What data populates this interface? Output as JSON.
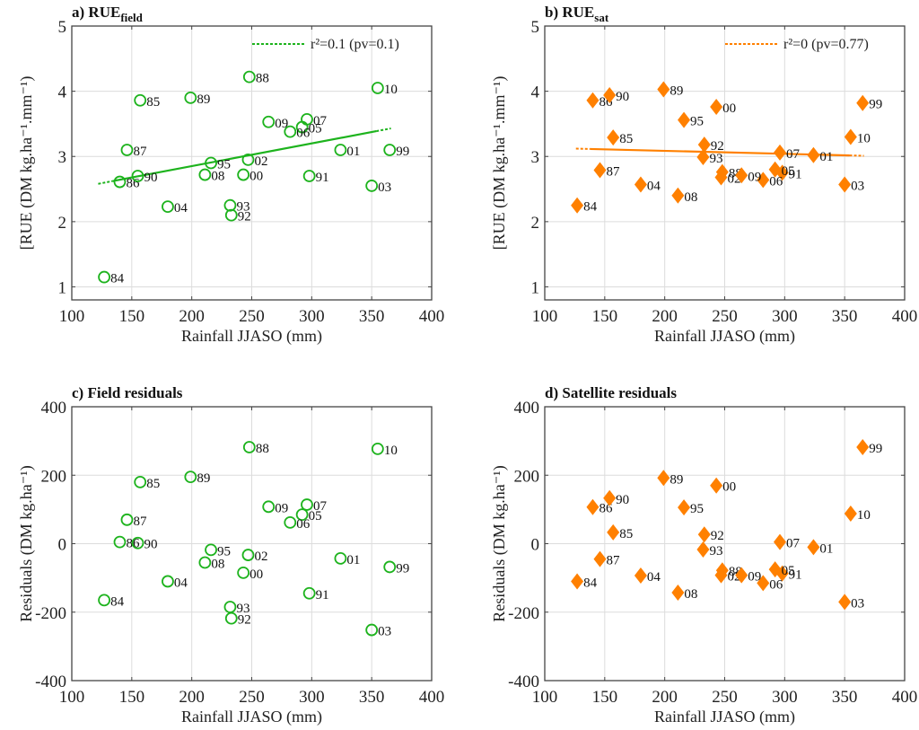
{
  "figure": {
    "colors": {
      "field": "#1db31d",
      "sat": "#ff8000",
      "grid": "#dcdcdc",
      "axis": "#444444"
    }
  },
  "chart_data": [
    {
      "id": "a",
      "type": "scatter",
      "title": "a) RUE",
      "title_sub": "field",
      "xlabel": "Rainfall JJASO (mm)",
      "ylabel": "[RUE (DM kg.ha⁻¹.mm⁻¹)",
      "xlim": [
        100,
        400
      ],
      "ylim": [
        0.8,
        5
      ],
      "xticks": [
        100,
        150,
        200,
        250,
        300,
        350,
        400
      ],
      "yticks": [
        1,
        2,
        3,
        4,
        5
      ],
      "grid": true,
      "marker": "circle",
      "legend": {
        "label": "r²=0.1 (pv=0.1)",
        "position": "top-right"
      },
      "fit": {
        "x": [
          122,
          366
        ],
        "y": [
          2.58,
          3.43
        ]
      },
      "points": [
        {
          "label": "84",
          "x": 127,
          "y": 1.15
        },
        {
          "label": "85",
          "x": 157,
          "y": 3.86
        },
        {
          "label": "86",
          "x": 140,
          "y": 2.61
        },
        {
          "label": "87",
          "x": 146,
          "y": 3.1
        },
        {
          "label": "88",
          "x": 248,
          "y": 4.22
        },
        {
          "label": "89",
          "x": 199,
          "y": 3.9
        },
        {
          "label": "90",
          "x": 155,
          "y": 2.7
        },
        {
          "label": "91",
          "x": 298,
          "y": 2.7
        },
        {
          "label": "92",
          "x": 233,
          "y": 2.1
        },
        {
          "label": "93",
          "x": 232,
          "y": 2.25
        },
        {
          "label": "95",
          "x": 216,
          "y": 2.9
        },
        {
          "label": "99",
          "x": 365,
          "y": 3.1
        },
        {
          "label": "00",
          "x": 243,
          "y": 2.72
        },
        {
          "label": "01",
          "x": 324,
          "y": 3.1
        },
        {
          "label": "02",
          "x": 247,
          "y": 2.95
        },
        {
          "label": "03",
          "x": 350,
          "y": 2.55
        },
        {
          "label": "04",
          "x": 180,
          "y": 2.23
        },
        {
          "label": "05",
          "x": 292,
          "y": 3.45
        },
        {
          "label": "06",
          "x": 282,
          "y": 3.38
        },
        {
          "label": "07",
          "x": 296,
          "y": 3.57
        },
        {
          "label": "08",
          "x": 211,
          "y": 2.72
        },
        {
          "label": "09",
          "x": 264,
          "y": 3.53
        },
        {
          "label": "10",
          "x": 355,
          "y": 4.05
        }
      ]
    },
    {
      "id": "b",
      "type": "scatter",
      "title": "b) RUE",
      "title_sub": "sat",
      "xlabel": "Rainfall JJASO (mm)",
      "ylabel": "[RUE (DM kg.ha⁻¹.mm⁻¹)",
      "xlim": [
        100,
        400
      ],
      "ylim": [
        0.8,
        5
      ],
      "xticks": [
        100,
        150,
        200,
        250,
        300,
        350,
        400
      ],
      "yticks": [
        1,
        2,
        3,
        4,
        5
      ],
      "grid": true,
      "marker": "diamond",
      "legend": {
        "label": "r²=0 (pv=0.77)",
        "position": "top-right"
      },
      "fit": {
        "x": [
          126,
          366
        ],
        "y": [
          3.12,
          3.01
        ]
      },
      "points": [
        {
          "label": "84",
          "x": 127,
          "y": 2.25
        },
        {
          "label": "85",
          "x": 157,
          "y": 3.29
        },
        {
          "label": "86",
          "x": 140,
          "y": 3.86
        },
        {
          "label": "87",
          "x": 146,
          "y": 2.79
        },
        {
          "label": "88",
          "x": 248,
          "y": 2.76
        },
        {
          "label": "89",
          "x": 199,
          "y": 4.03
        },
        {
          "label": "90",
          "x": 154,
          "y": 3.94
        },
        {
          "label": "91",
          "x": 298,
          "y": 2.75
        },
        {
          "label": "92",
          "x": 233,
          "y": 3.18
        },
        {
          "label": "93",
          "x": 232,
          "y": 2.99
        },
        {
          "label": "95",
          "x": 216,
          "y": 3.56
        },
        {
          "label": "99",
          "x": 365,
          "y": 3.82
        },
        {
          "label": "00",
          "x": 243,
          "y": 3.76
        },
        {
          "label": "01",
          "x": 324,
          "y": 3.02
        },
        {
          "label": "02",
          "x": 247,
          "y": 2.68
        },
        {
          "label": "03",
          "x": 350,
          "y": 2.57
        },
        {
          "label": "04",
          "x": 180,
          "y": 2.57
        },
        {
          "label": "05",
          "x": 292,
          "y": 2.8
        },
        {
          "label": "06",
          "x": 282,
          "y": 2.64
        },
        {
          "label": "07",
          "x": 296,
          "y": 3.06
        },
        {
          "label": "08",
          "x": 211,
          "y": 2.4
        },
        {
          "label": "09",
          "x": 264,
          "y": 2.71
        },
        {
          "label": "10",
          "x": 355,
          "y": 3.3
        }
      ]
    },
    {
      "id": "c",
      "type": "scatter",
      "title": "c) Field residuals",
      "xlabel": "Rainfall JJASO (mm)",
      "ylabel": "Residuals (DM kg.ha⁻¹)",
      "xlim": [
        100,
        400
      ],
      "ylim": [
        -400,
        400
      ],
      "xticks": [
        100,
        150,
        200,
        250,
        300,
        350,
        400
      ],
      "yticks": [
        -400,
        -200,
        0,
        200,
        400
      ],
      "grid": true,
      "marker": "circle",
      "points": [
        {
          "label": "84",
          "x": 127,
          "y": -165
        },
        {
          "label": "85",
          "x": 157,
          "y": 180
        },
        {
          "label": "86",
          "x": 140,
          "y": 5
        },
        {
          "label": "87",
          "x": 146,
          "y": 70
        },
        {
          "label": "88",
          "x": 248,
          "y": 282
        },
        {
          "label": "89",
          "x": 199,
          "y": 195
        },
        {
          "label": "90",
          "x": 155,
          "y": 2
        },
        {
          "label": "91",
          "x": 298,
          "y": -145
        },
        {
          "label": "92",
          "x": 233,
          "y": -218
        },
        {
          "label": "93",
          "x": 232,
          "y": -185
        },
        {
          "label": "95",
          "x": 216,
          "y": -18
        },
        {
          "label": "99",
          "x": 365,
          "y": -68
        },
        {
          "label": "00",
          "x": 243,
          "y": -85
        },
        {
          "label": "01",
          "x": 324,
          "y": -43
        },
        {
          "label": "02",
          "x": 247,
          "y": -33
        },
        {
          "label": "03",
          "x": 350,
          "y": -252
        },
        {
          "label": "04",
          "x": 180,
          "y": -110
        },
        {
          "label": "05",
          "x": 292,
          "y": 85
        },
        {
          "label": "06",
          "x": 282,
          "y": 62
        },
        {
          "label": "07",
          "x": 296,
          "y": 114
        },
        {
          "label": "08",
          "x": 211,
          "y": -55
        },
        {
          "label": "09",
          "x": 264,
          "y": 108
        },
        {
          "label": "10",
          "x": 355,
          "y": 277
        }
      ]
    },
    {
      "id": "d",
      "type": "scatter",
      "title": "d) Satellite residuals",
      "xlabel": "Rainfall JJASO (mm)",
      "ylabel": "Residuals (DM kg.ha⁻¹)",
      "xlim": [
        100,
        400
      ],
      "ylim": [
        -400,
        400
      ],
      "xticks": [
        100,
        150,
        200,
        250,
        300,
        350,
        400
      ],
      "yticks": [
        -400,
        -200,
        0,
        200,
        400
      ],
      "grid": true,
      "marker": "diamond",
      "points": [
        {
          "label": "84",
          "x": 127,
          "y": -110
        },
        {
          "label": "85",
          "x": 157,
          "y": 33
        },
        {
          "label": "86",
          "x": 140,
          "y": 107
        },
        {
          "label": "87",
          "x": 146,
          "y": -45
        },
        {
          "label": "88",
          "x": 248,
          "y": -78
        },
        {
          "label": "89",
          "x": 199,
          "y": 192
        },
        {
          "label": "90",
          "x": 154,
          "y": 133
        },
        {
          "label": "91",
          "x": 298,
          "y": -87
        },
        {
          "label": "92",
          "x": 233,
          "y": 27
        },
        {
          "label": "93",
          "x": 232,
          "y": -17
        },
        {
          "label": "95",
          "x": 216,
          "y": 106
        },
        {
          "label": "99",
          "x": 365,
          "y": 282
        },
        {
          "label": "00",
          "x": 243,
          "y": 170
        },
        {
          "label": "01",
          "x": 324,
          "y": -10
        },
        {
          "label": "02",
          "x": 247,
          "y": -92
        },
        {
          "label": "03",
          "x": 350,
          "y": -170
        },
        {
          "label": "04",
          "x": 180,
          "y": -93
        },
        {
          "label": "05",
          "x": 292,
          "y": -75
        },
        {
          "label": "06",
          "x": 282,
          "y": -115
        },
        {
          "label": "07",
          "x": 296,
          "y": 5
        },
        {
          "label": "08",
          "x": 211,
          "y": -143
        },
        {
          "label": "09",
          "x": 264,
          "y": -92
        },
        {
          "label": "10",
          "x": 355,
          "y": 88
        }
      ]
    }
  ]
}
